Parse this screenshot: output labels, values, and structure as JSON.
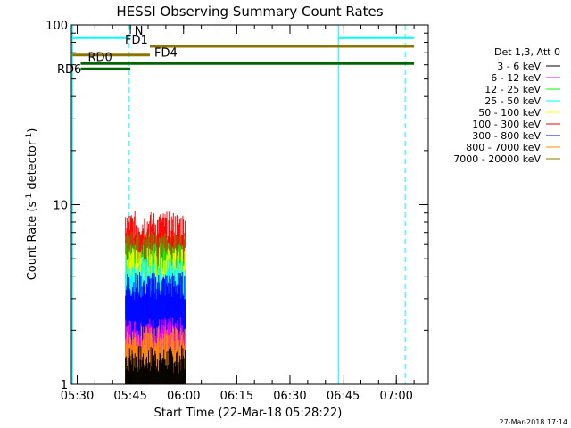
{
  "chart_data": {
    "type": "bar",
    "title": "HESSI Observing Summary Count Rates",
    "xlabel": "Start Time (22-Mar-18 05:28:22)",
    "ylabel_main": "Count Rate (s",
    "ylabel_exp1": "-1",
    "ylabel_mid": " detector",
    "ylabel_exp2": "-1",
    "ylabel_end": ")",
    "y_scale": "log",
    "ylim": [
      1,
      100
    ],
    "xlim": [
      "05:28:22",
      "07:09:00"
    ],
    "x_tick_labels": [
      "05:30",
      "05:45",
      "06:00",
      "06:15",
      "06:30",
      "06:45",
      "07:00"
    ],
    "y_tick_labels": [
      "1",
      "10",
      "100"
    ],
    "legend": {
      "header": "Det 1,3, Att 0",
      "position": "right",
      "entries": [
        {
          "label": "3 - 6 keV",
          "color": "#000000"
        },
        {
          "label": "6 - 12 keV",
          "color": "#ff00ff"
        },
        {
          "label": "12 - 25 keV",
          "color": "#00ff00"
        },
        {
          "label": "25 - 50 keV",
          "color": "#00ffff"
        },
        {
          "label": "50 - 100 keV",
          "color": "#ffff00"
        },
        {
          "label": "100 - 300 keV",
          "color": "#ff0000"
        },
        {
          "label": "300 - 800 keV",
          "color": "#0000ff"
        },
        {
          "label": "800 - 7000 keV",
          "color": "#ff8c00"
        },
        {
          "label": "7000 - 20000 keV",
          "color": "#8b7500"
        }
      ]
    },
    "series": [
      {
        "name": "3 - 6 keV",
        "color": "#000000",
        "level": 1.4
      },
      {
        "name": "6 - 12 keV",
        "color": "#ff00ff",
        "level": 2.0
      },
      {
        "name": "12 - 25 keV",
        "color": "#00ff00",
        "level": 5.2
      },
      {
        "name": "25 - 50 keV",
        "color": "#00ffff",
        "level": 4.4
      },
      {
        "name": "50 - 100 keV",
        "color": "#ffff00",
        "level": 4.9
      },
      {
        "name": "100 - 300 keV",
        "color": "#ff0000",
        "level": 7.8
      },
      {
        "name": "300 - 800 keV",
        "color": "#0000ff",
        "level": 3.6
      },
      {
        "name": "800 - 7000 keV",
        "color": "#ff8c00",
        "level": 1.8
      },
      {
        "name": "7000 - 20000 keV",
        "color": "#8b7500",
        "level": 6.0
      }
    ],
    "data_window": {
      "start": "05:43:30",
      "end": "06:00:30"
    },
    "vertical_lines": [
      {
        "time": "05:28:40",
        "color": "#00ffff",
        "style": "solid"
      },
      {
        "time": "05:44:40",
        "color": "#00ffff",
        "style": "dashed"
      },
      {
        "time": "06:43:40",
        "color": "#00ffff",
        "style": "solid"
      },
      {
        "time": "07:02:30",
        "color": "#00ffff",
        "style": "dashed"
      }
    ],
    "state_bars": [
      {
        "label": "N",
        "color": "#00ffff",
        "y": 85,
        "segments": [
          [
            "05:28:40",
            "05:44:40"
          ],
          [
            "06:43:40",
            "07:05:00"
          ]
        ]
      },
      {
        "label": "FD1",
        "color": "#8b7500",
        "y": 76,
        "segments": [
          [
            "05:50:30",
            "07:05:00"
          ]
        ]
      },
      {
        "label": "FD4",
        "color": "#8b7500",
        "y": 68,
        "segments": [
          [
            "05:28:40",
            "05:50:30"
          ]
        ]
      },
      {
        "label": "RD0",
        "color": "#006400",
        "y": 61,
        "segments": [
          [
            "05:31:00",
            "05:45:00"
          ],
          [
            "05:45:00",
            "07:05:00"
          ]
        ]
      },
      {
        "label": "RD6",
        "color": "#006400",
        "y": 57,
        "segments": [
          [
            "05:31:00",
            "05:45:00"
          ]
        ]
      }
    ],
    "footer_date": "27-Mar-2018 17:14"
  }
}
